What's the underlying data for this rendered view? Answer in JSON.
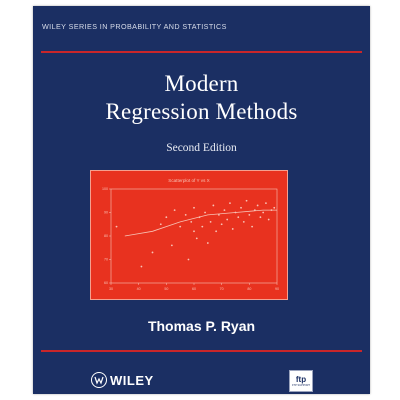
{
  "series": "WILEY SERIES IN PROBABILITY AND STATISTICS",
  "title_line1": "Modern",
  "title_line2": "Regression Methods",
  "edition": "Second Edition",
  "author": "Thomas P. Ryan",
  "publisher": "WILEY",
  "ftp_badge": {
    "main": "ftp",
    "sub": "FTP SUPPORT"
  },
  "colors": {
    "cover": "#1b2f63",
    "rule": "#c9262a",
    "plot_panel": "#e8321f",
    "plot_ink": "#f7c2b5"
  },
  "icons": {
    "publisher_logo": "wiley-logo-icon"
  },
  "chart_data": {
    "type": "scatter",
    "title": "Scatterplot of Y vs X",
    "xlabel": "",
    "ylabel": "",
    "xlim": [
      30,
      90
    ],
    "ylim": [
      60,
      100
    ],
    "xticks": [
      30,
      40,
      50,
      60,
      70,
      80,
      90
    ],
    "yticks": [
      60,
      70,
      80,
      90,
      100
    ],
    "points": [
      [
        32,
        84
      ],
      [
        41,
        67
      ],
      [
        45,
        73
      ],
      [
        48,
        85
      ],
      [
        50,
        88
      ],
      [
        52,
        76
      ],
      [
        53,
        91
      ],
      [
        55,
        84
      ],
      [
        57,
        89
      ],
      [
        58,
        70
      ],
      [
        59,
        86
      ],
      [
        60,
        82
      ],
      [
        60,
        92
      ],
      [
        61,
        79
      ],
      [
        62,
        88
      ],
      [
        63,
        84
      ],
      [
        64,
        90
      ],
      [
        65,
        77
      ],
      [
        66,
        86
      ],
      [
        67,
        93
      ],
      [
        68,
        82
      ],
      [
        69,
        89
      ],
      [
        70,
        85
      ],
      [
        71,
        91
      ],
      [
        72,
        87
      ],
      [
        73,
        94
      ],
      [
        74,
        83
      ],
      [
        75,
        90
      ],
      [
        76,
        88
      ],
      [
        77,
        92
      ],
      [
        78,
        86
      ],
      [
        79,
        95
      ],
      [
        80,
        89
      ],
      [
        81,
        84
      ],
      [
        82,
        91
      ],
      [
        83,
        93
      ],
      [
        84,
        88
      ],
      [
        85,
        90
      ],
      [
        86,
        94
      ],
      [
        87,
        87
      ],
      [
        88,
        91
      ],
      [
        89,
        92
      ]
    ],
    "fit_line": [
      [
        35,
        80
      ],
      [
        45,
        82
      ],
      [
        55,
        86
      ],
      [
        65,
        89
      ],
      [
        75,
        90
      ],
      [
        85,
        91
      ],
      [
        90,
        91
      ]
    ],
    "grid": false,
    "legend": "none"
  }
}
